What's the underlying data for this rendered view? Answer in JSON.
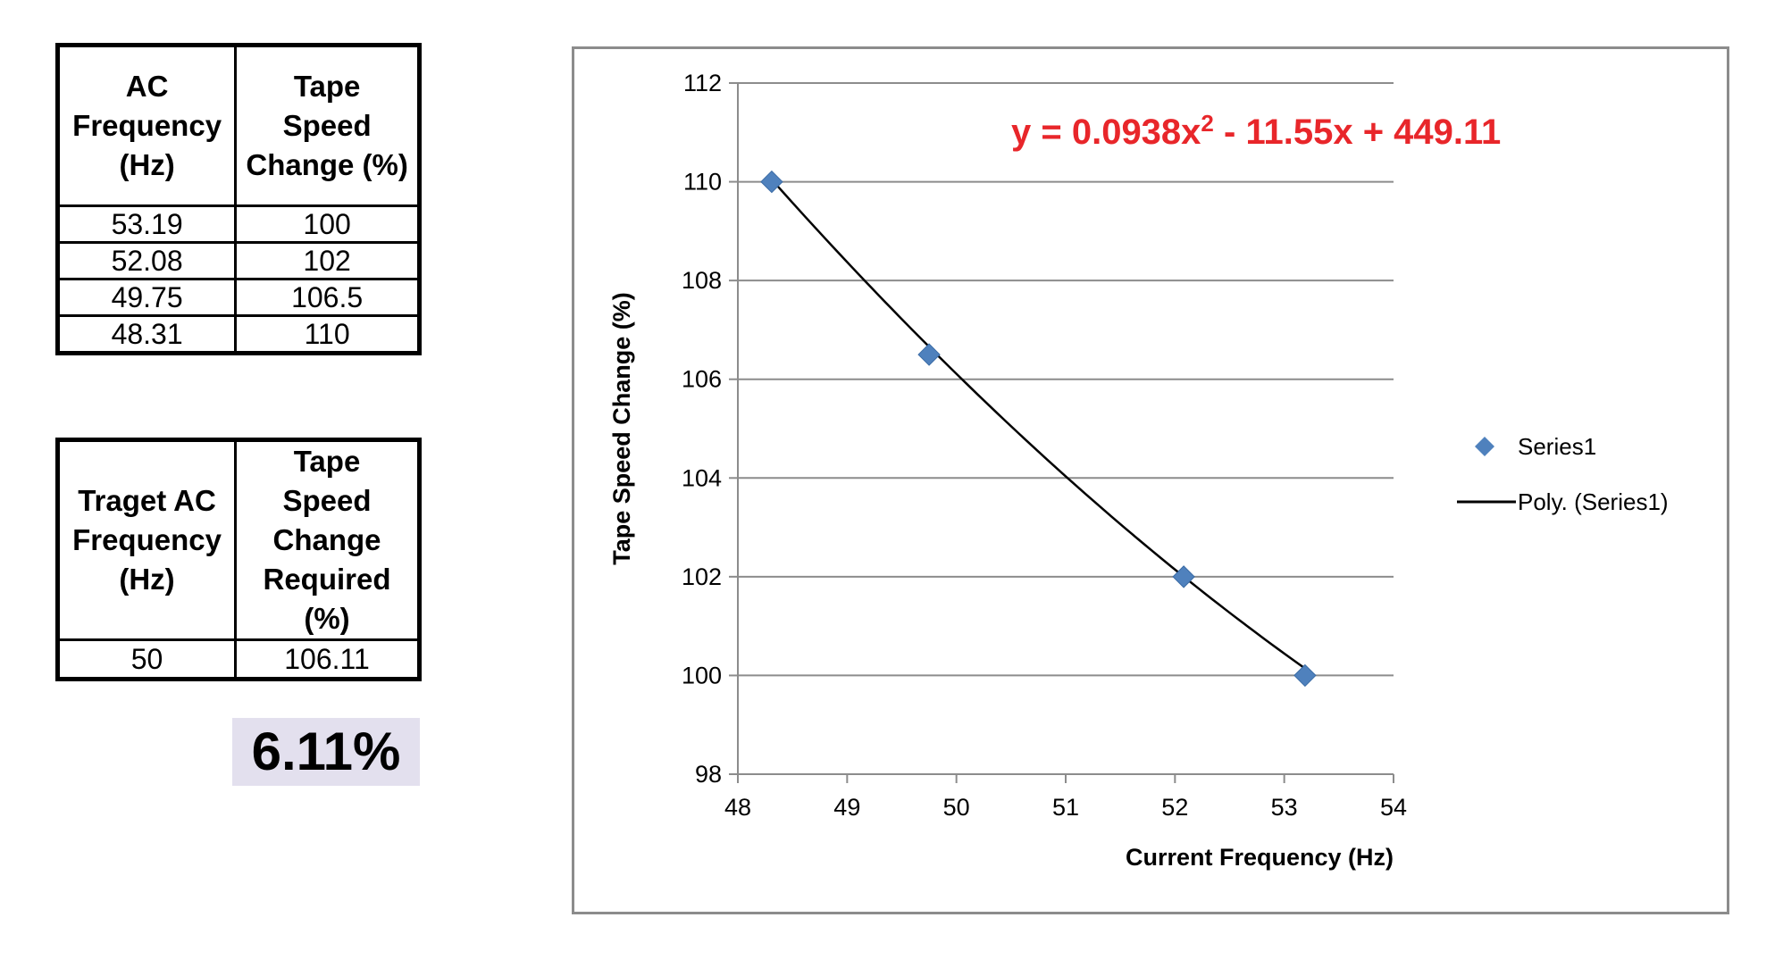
{
  "source_table": {
    "headers": [
      [
        "AC",
        "Frequency",
        "(Hz)"
      ],
      [
        "Tape",
        "Speed",
        "Change (%)"
      ]
    ],
    "rows": [
      [
        "53.19",
        "100"
      ],
      [
        "52.08",
        "102"
      ],
      [
        "49.75",
        "106.5"
      ],
      [
        "48.31",
        "110"
      ]
    ]
  },
  "target_table": {
    "headers": [
      [
        "Traget AC",
        "Frequency",
        "(Hz)"
      ],
      [
        "Tape",
        "Speed",
        "Change",
        "Required",
        "(%)"
      ]
    ],
    "rows": [
      [
        "50",
        "106.11"
      ]
    ]
  },
  "result": "6.11%",
  "chart_data": {
    "type": "scatter",
    "xlabel": "Current Frequency (Hz)",
    "ylabel": "Tape Speed Change (%)",
    "xlim": [
      48,
      54
    ],
    "ylim": [
      98,
      112
    ],
    "xticks": [
      48,
      49,
      50,
      51,
      52,
      53,
      54
    ],
    "yticks": [
      98,
      100,
      102,
      104,
      106,
      108,
      110,
      112
    ],
    "grid": "horizontal",
    "legend_position": "right",
    "series": [
      {
        "name": "Series1",
        "marker": "diamond",
        "color": "#4f81bd",
        "points": [
          {
            "x": 48.31,
            "y": 110
          },
          {
            "x": 49.75,
            "y": 106.5
          },
          {
            "x": 52.08,
            "y": 102
          },
          {
            "x": 53.19,
            "y": 100
          }
        ]
      }
    ],
    "trendline": {
      "name": "Poly. (Series1)",
      "type": "polynomial",
      "coefficients": [
        0.0938,
        -11.55,
        449.11
      ],
      "equation_parts": {
        "a": "y = 0.0938x",
        "exp": "2",
        "b": " - 11.55x + 449.11"
      },
      "equation_color": "#e8262a",
      "color": "#000000",
      "x_range": [
        48.31,
        53.19
      ]
    }
  }
}
